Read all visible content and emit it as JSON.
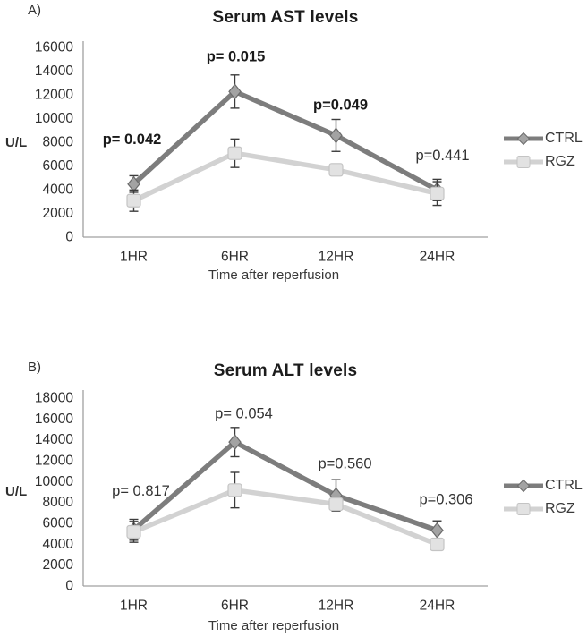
{
  "figure_type": "two-panel line chart, scientific figure",
  "colors": {
    "background": "#ffffff",
    "ctrl_line": "#7d7d7d",
    "ctrl_marker_fill": "#a3a3a3",
    "ctrl_marker_stroke": "#6b6b6b",
    "rgz_line": "#d2d2d2",
    "rgz_marker_fill": "#e2e2e2",
    "rgz_marker_stroke": "#c4c4c4",
    "error_bar": "#3c3c3c",
    "axis": "#a0a0a0",
    "text": "#2e2e2e"
  },
  "chart_data": [
    {
      "type": "line",
      "panel": "A)",
      "title": "Serum AST levels",
      "xlabel": "Time after reperfusion",
      "ylabel": "U/L",
      "categories": [
        "1HR",
        "6HR",
        "12HR",
        "24HR"
      ],
      "ylim": [
        0,
        16000
      ],
      "yticks": [
        0,
        2000,
        4000,
        6000,
        8000,
        10000,
        12000,
        14000,
        16000
      ],
      "grid": false,
      "legend_position": "right",
      "series": [
        {
          "name": "CTRL",
          "marker": "diamond",
          "values": [
            4400,
            12200,
            8500,
            3900
          ],
          "errors": [
            700,
            1400,
            1350,
            900
          ]
        },
        {
          "name": "RGZ",
          "marker": "square",
          "values": [
            3000,
            7000,
            5600,
            3600
          ],
          "errors": [
            900,
            1200,
            300,
            1000
          ]
        }
      ],
      "annotations": [
        {
          "label": "p= 0.042",
          "bold": true,
          "x": 0,
          "y": 8200,
          "dx": -2
        },
        {
          "label": "p= 0.015",
          "bold": true,
          "x": 1,
          "y": 15200,
          "dx": 1
        },
        {
          "label": "p=0.049",
          "bold": true,
          "x": 2,
          "y": 11100,
          "dx": 5
        },
        {
          "label": "p=0.441",
          "bold": false,
          "x": 3,
          "y": 6850,
          "dx": 6
        }
      ]
    },
    {
      "type": "line",
      "panel": "B)",
      "title": "Serum ALT levels",
      "xlabel": "Time after reperfusion",
      "ylabel": "U/L",
      "categories": [
        "1HR",
        "6HR",
        "12HR",
        "24HR"
      ],
      "ylim": [
        0,
        18000
      ],
      "yticks": [
        0,
        2000,
        4000,
        6000,
        8000,
        10000,
        12000,
        14000,
        16000,
        18000
      ],
      "grid": false,
      "legend_position": "right",
      "series": [
        {
          "name": "CTRL",
          "marker": "diamond",
          "values": [
            5300,
            13700,
            8600,
            5250
          ],
          "errors": [
            1000,
            1400,
            1500,
            900
          ]
        },
        {
          "name": "RGZ",
          "marker": "square",
          "values": [
            5100,
            9100,
            7750,
            3900
          ],
          "errors": [
            1000,
            1700,
            600,
            300
          ]
        }
      ],
      "annotations": [
        {
          "label": "p= 0.817",
          "bold": false,
          "x": 0,
          "y": 9050,
          "dx": 8
        },
        {
          "label": "p= 0.054",
          "bold": false,
          "x": 1,
          "y": 16500,
          "dx": 10
        },
        {
          "label": "p=0.560",
          "bold": false,
          "x": 2,
          "y": 11700,
          "dx": 10
        },
        {
          "label": "p=0.306",
          "bold": false,
          "x": 3,
          "y": 8250,
          "dx": 10
        }
      ]
    }
  ]
}
